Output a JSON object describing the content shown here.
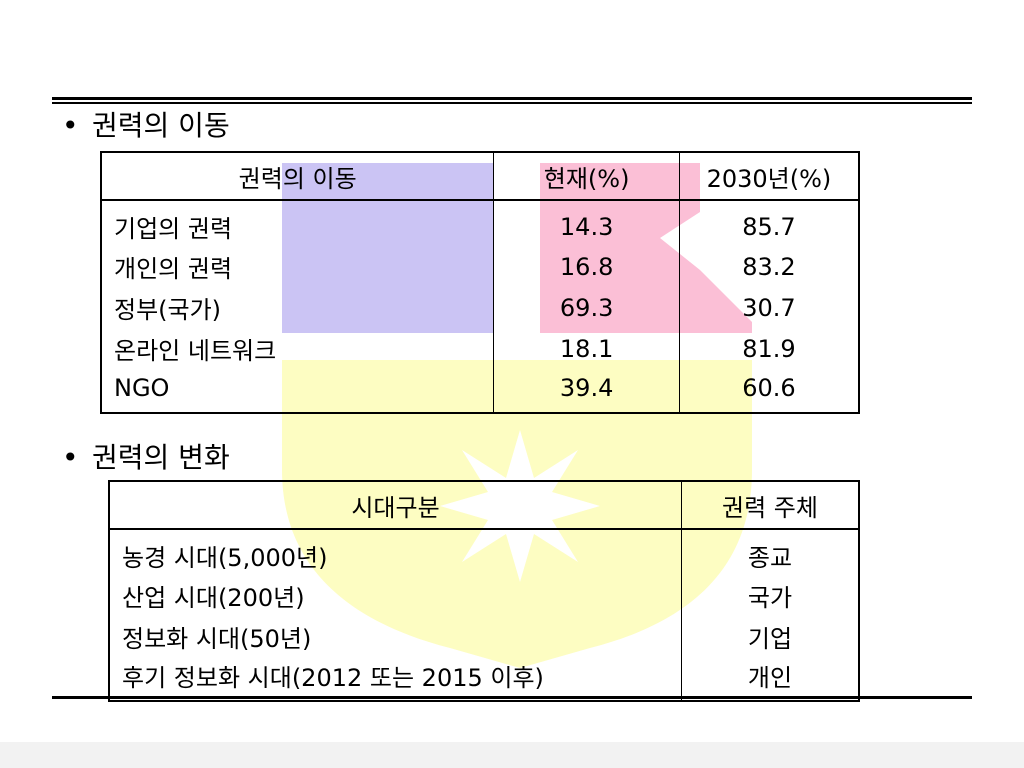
{
  "sections": [
    {
      "bullet": "•",
      "heading": "권력의 이동",
      "table": {
        "columns": [
          "권력의 이동",
          "현재(%)",
          "2030년(%)"
        ],
        "rows": [
          {
            "label": "기업의 권력",
            "current": "14.3",
            "future": "85.7"
          },
          {
            "label": "개인의 권력",
            "current": "16.8",
            "future": "83.2"
          },
          {
            "label": "정부(국가)",
            "current": "69.3",
            "future": "30.7"
          },
          {
            "label": "온라인 네트워크",
            "current": "18.1",
            "future": "81.9"
          },
          {
            "label": "NGO",
            "current": "39.4",
            "future": "60.6"
          }
        ]
      }
    },
    {
      "bullet": "•",
      "heading": "권력의 변화",
      "table": {
        "columns": [
          "시대구분",
          "권력 주체"
        ],
        "rows": [
          {
            "era": "농경 시대(5,000년)",
            "subject": "종교"
          },
          {
            "era": "산업 시대(200년)",
            "subject": "국가"
          },
          {
            "era": "정보화 시대(50년)",
            "subject": "기업"
          },
          {
            "era": "후기 정보화 시대(2012 또는 2015 이후)",
            "subject": "개인"
          }
        ]
      }
    }
  ],
  "watermark": {
    "colors": {
      "blue": "#cbc4f4",
      "pink": "#fbbfd6",
      "yellow": "#fdfdc2"
    }
  }
}
